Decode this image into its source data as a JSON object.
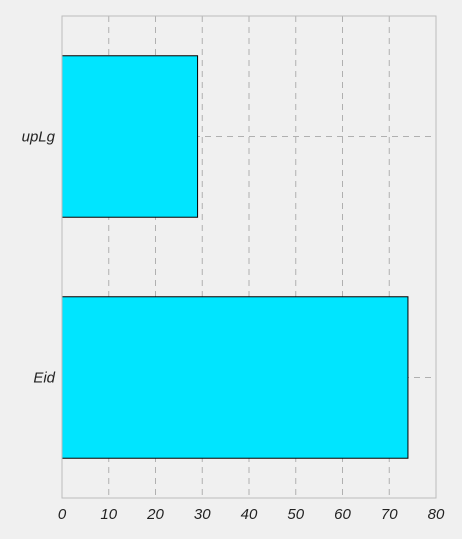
{
  "chart_data": {
    "type": "bar",
    "orientation": "horizontal",
    "categories": [
      "upLg",
      "Eid"
    ],
    "values": [
      29,
      74
    ],
    "title": "",
    "xlabel": "",
    "ylabel": "",
    "xlim": [
      0,
      80
    ],
    "xticks": [
      0,
      10,
      20,
      30,
      40,
      50,
      60,
      70,
      80
    ],
    "grid": true,
    "legend": "none"
  },
  "colors": {
    "background": "#f0f0f0",
    "bar_fill": "#00e5ff",
    "bar_edge": "#000000",
    "grid": "#b0b0b0",
    "frame": "#bcbcbc"
  }
}
